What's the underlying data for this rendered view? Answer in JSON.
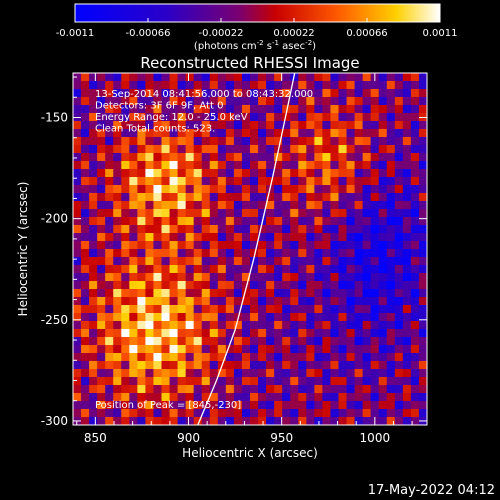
{
  "chart_data": {
    "type": "heatmap",
    "title": "Reconstructed RHESSI Image",
    "xlabel": "Heliocentric X (arcsec)",
    "ylabel": "Heliocentric Y (arcsec)",
    "xlim": [
      838,
      1028
    ],
    "ylim": [
      -302,
      -128
    ],
    "x_ticks": [
      850,
      900,
      950,
      1000
    ],
    "y_ticks": [
      -300,
      -250,
      -200,
      -150
    ],
    "colorbar": {
      "min": -0.0011,
      "max": 0.0011,
      "ticks": [
        "-0.0011",
        "-0.00066",
        "-0.00022",
        "0.00022",
        "0.00066",
        "0.0011"
      ],
      "label_prefix": "(photons cm",
      "label_exp1": "-2",
      "label_mid": " s",
      "label_exp2": "-1",
      "label_mid2": " asec",
      "label_exp3": "-2",
      "label_suffix": ")"
    },
    "annotations": [
      "13-Sep-2014 08:41:56.000 to 08:43:32.000",
      "Detectors: 3F 6F 9F, Att 0",
      "Energy Range: 12.0 - 25.0 keV",
      "Clean     Total counts: 523."
    ],
    "position_label": "Position of Peak = [845,-230]",
    "limb_curve": [
      [
        905,
        -302
      ],
      [
        915,
        -280
      ],
      [
        925,
        -255
      ],
      [
        935,
        -220
      ],
      [
        945,
        -180
      ],
      [
        952,
        -150
      ],
      [
        957,
        -128
      ]
    ]
  },
  "footer": {
    "timestamp": "17-May-2022 04:12"
  }
}
